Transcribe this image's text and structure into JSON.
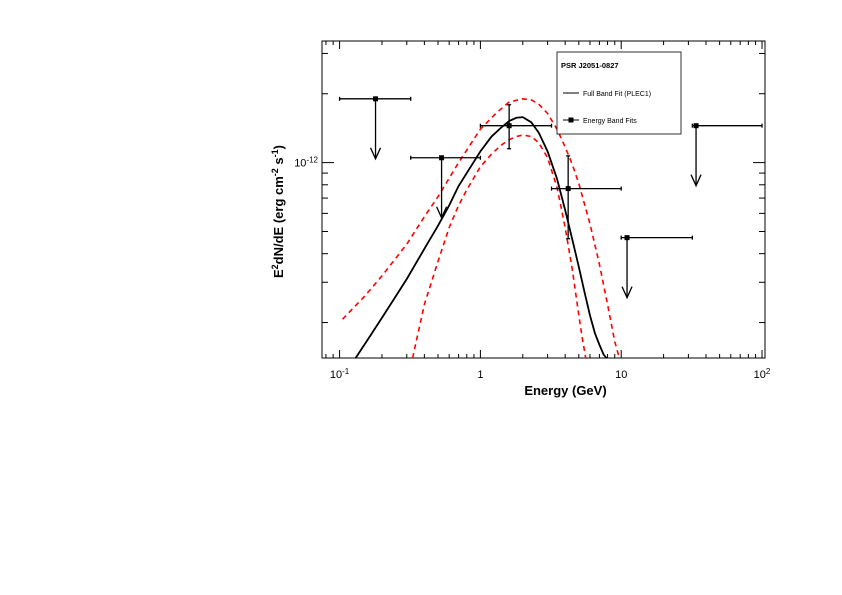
{
  "chart_data": {
    "type": "scatter",
    "title": "",
    "xlabel": "Energy (GeV)",
    "ylabel": "E²dN/dE (erg cm⁻² s⁻¹)",
    "ylabel_parts": {
      "base": "E",
      "sup1": "2",
      "mid": "dN/dE (erg cm",
      "sup2": "-2",
      "mid2": " s",
      "sup3": "-1",
      "end": ")"
    },
    "x_scale": "log",
    "y_scale": "log",
    "xlim": [
      0.075,
      105
    ],
    "ylim": [
      1.4e-13,
      3.4e-12
    ],
    "x_ticks": [
      {
        "value": 0.1,
        "base": "10",
        "exp": "-1"
      },
      {
        "value": 1,
        "base": "1",
        "exp": ""
      },
      {
        "value": 10,
        "base": "10",
        "exp": ""
      },
      {
        "value": 100,
        "base": "10",
        "exp": "2"
      }
    ],
    "y_ticks": [
      {
        "value": 1e-12,
        "base": "10",
        "exp": "-12"
      }
    ],
    "legend": {
      "title": "PSR J2051-0827",
      "position": "top-right",
      "entries": [
        {
          "label": "Full Band Fit (PLEC1)",
          "style": "line"
        },
        {
          "label": "Energy Band Fits",
          "style": "marker"
        }
      ]
    },
    "model": {
      "name": "Full Band Fit (PLEC1)",
      "color": "#000000",
      "x": [
        0.13,
        0.16,
        0.2,
        0.25,
        0.3,
        0.4,
        0.5,
        0.6,
        0.7,
        0.8,
        1.0,
        1.2,
        1.4,
        1.6,
        1.8,
        2.0,
        2.3,
        2.6,
        3.0,
        3.5,
        4.0,
        4.5,
        5.0,
        5.5,
        6.0,
        6.5,
        7.0,
        7.5,
        7.85
      ],
      "y": [
        1.4e-13,
        1.7e-13,
        2.1e-13,
        2.6e-13,
        3.1e-13,
        4.2e-13,
        5.3e-13,
        6.5e-13,
        7.9e-13,
        9e-13,
        1.12e-12,
        1.3e-12,
        1.42e-12,
        1.52e-12,
        1.57e-12,
        1.58e-12,
        1.5e-12,
        1.35e-12,
        1.12e-12,
        8.5e-13,
        6.2e-13,
        4.6e-13,
        3.5e-13,
        2.7e-13,
        2.15e-13,
        1.8e-13,
        1.6e-13,
        1.45e-13,
        1.4e-13
      ]
    },
    "band_upper": {
      "color": "#ff0000",
      "x": [
        0.105,
        0.15,
        0.2,
        0.3,
        0.4,
        0.5,
        0.7,
        1.0,
        1.3,
        1.6,
        2.0,
        2.3,
        2.6,
        3.0,
        3.5,
        4.0,
        4.5,
        5.0,
        6.0,
        7.0,
        8.0,
        9.0,
        9.7
      ],
      "y": [
        2.07e-13,
        2.6e-13,
        3.2e-13,
        4.4e-13,
        5.8e-13,
        7.1e-13,
        1e-12,
        1.4e-12,
        1.65e-12,
        1.84e-12,
        1.9e-12,
        1.88e-12,
        1.8e-12,
        1.64e-12,
        1.4e-12,
        1.17e-12,
        9.8e-13,
        8.1e-13,
        5.4e-13,
        3.6e-13,
        2.4e-13,
        1.65e-13,
        1.4e-13
      ]
    },
    "band_lower": {
      "color": "#ff0000",
      "x": [
        0.33,
        0.4,
        0.5,
        0.6,
        0.7,
        0.8,
        1.0,
        1.2,
        1.4,
        1.6,
        1.8,
        2.0,
        2.3,
        2.6,
        3.0,
        3.5,
        4.0,
        4.5,
        5.0,
        5.3,
        5.6
      ],
      "y": [
        1.4e-13,
        2.4e-13,
        3.7e-13,
        5.2e-13,
        6.5e-13,
        7.6e-13,
        9.6e-13,
        1.09e-12,
        1.19e-12,
        1.26e-12,
        1.3e-12,
        1.32e-12,
        1.3e-12,
        1.22e-12,
        1.05e-12,
        7.8e-13,
        5.2e-13,
        3.4e-13,
        2.15e-13,
        1.7e-13,
        1.4e-13
      ]
    },
    "band_points": [
      {
        "x": 1.6,
        "y": 1.45e-12,
        "xlo": 1.0,
        "xhi": 3.2,
        "ylo": 1.15e-12,
        "yhi": 1.79e-12,
        "upper_limit": false
      },
      {
        "x": 4.2,
        "y": 7.7e-13,
        "xlo": 3.2,
        "xhi": 10.0,
        "ylo": 4.65e-13,
        "yhi": 1.07e-12,
        "upper_limit": false
      }
    ],
    "upper_limits": [
      {
        "x": 0.18,
        "y": 1.9e-12,
        "xlo": 0.1,
        "xhi": 0.32
      },
      {
        "x": 0.53,
        "y": 1.05e-12,
        "xlo": 0.32,
        "xhi": 1.0
      },
      {
        "x": 11.0,
        "y": 4.7e-13,
        "xlo": 10.0,
        "xhi": 32.0
      },
      {
        "x": 34.0,
        "y": 1.45e-12,
        "xlo": 32.0,
        "xhi": 100.0
      }
    ]
  }
}
